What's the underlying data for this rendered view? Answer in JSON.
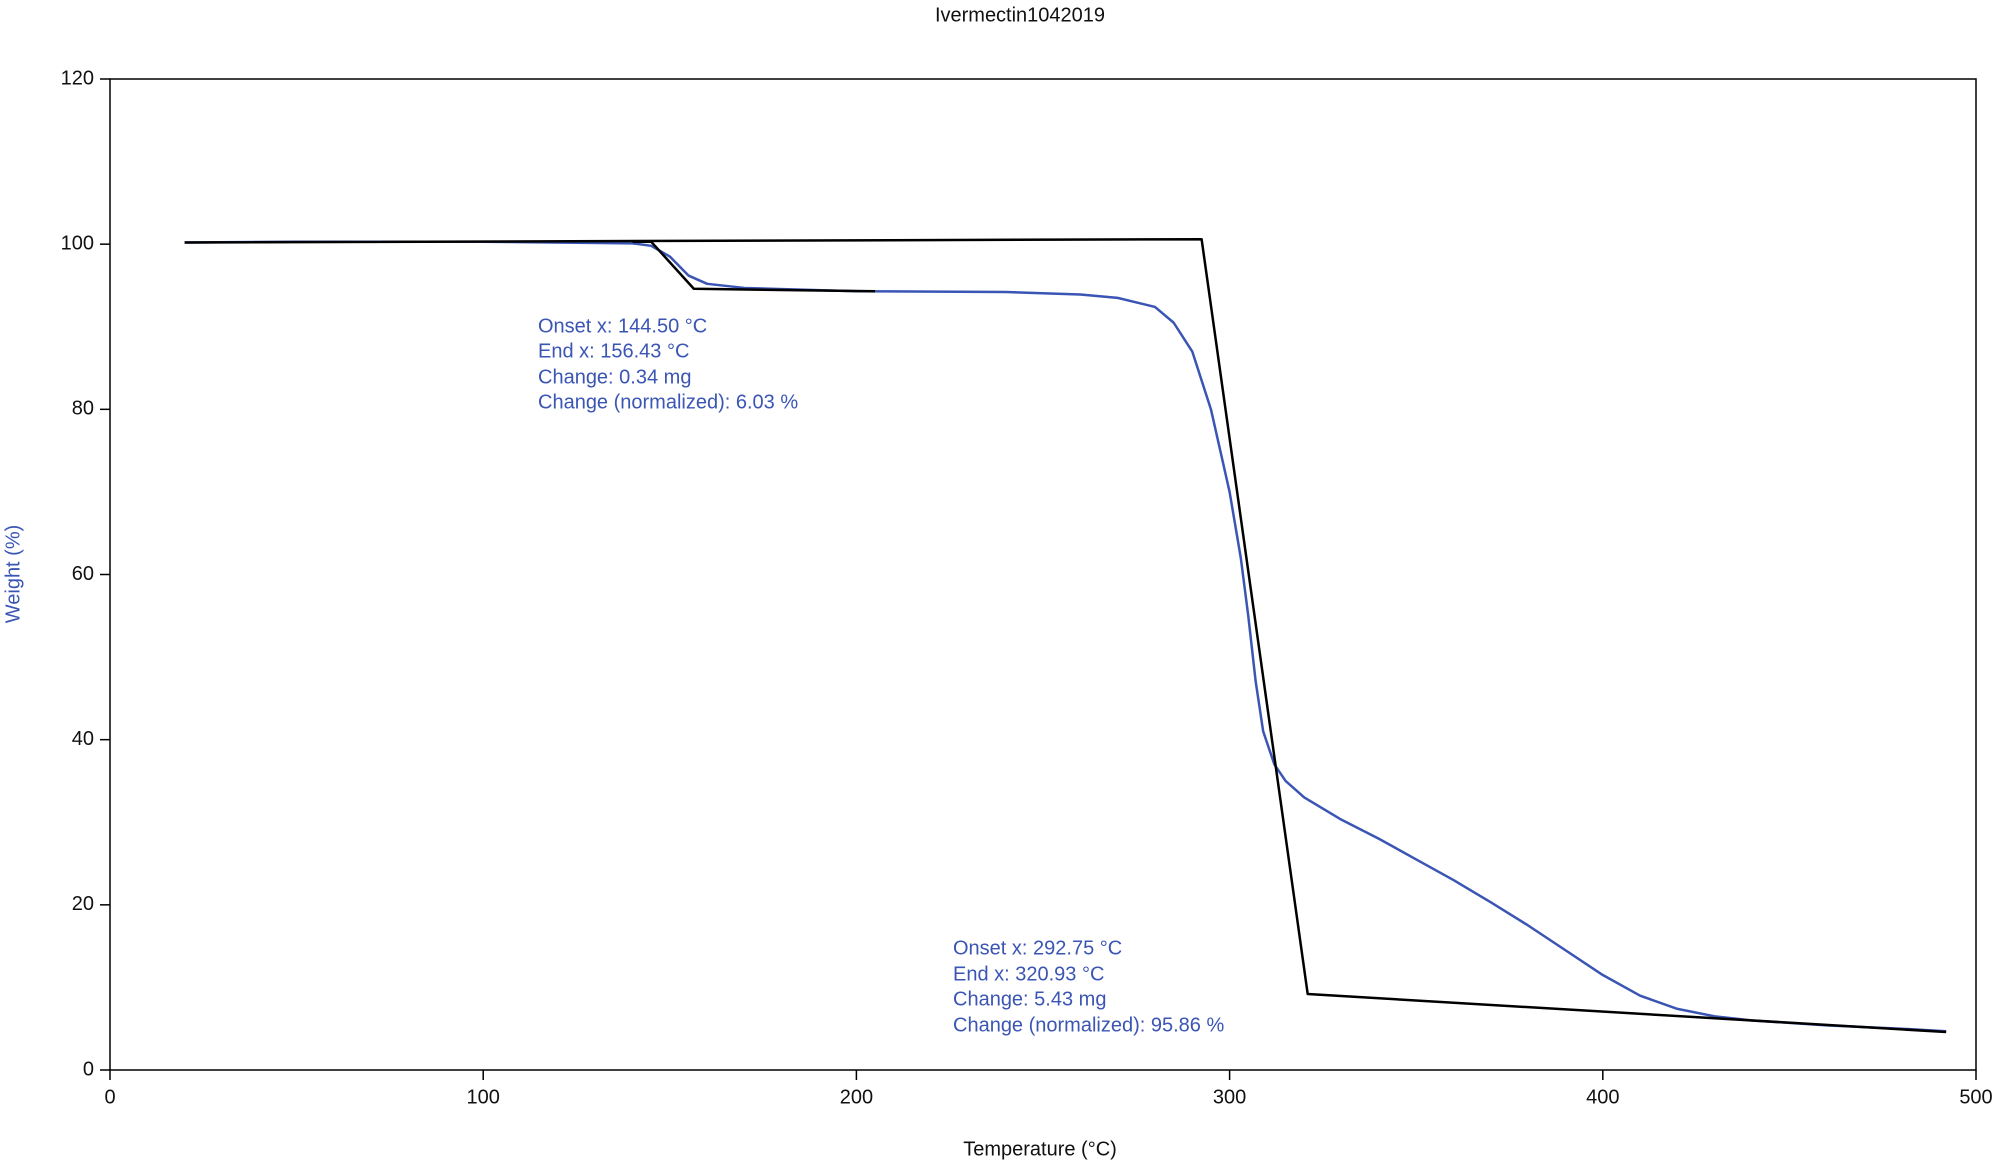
{
  "chart_data": {
    "type": "line",
    "title": "Ivermectin1042019",
    "x_label": "Temperature  (°C)",
    "y_label": "Weight  (%)",
    "xlim": [
      0,
      500
    ],
    "ylim": [
      0,
      120
    ],
    "xticks": [
      0,
      100,
      200,
      300,
      400,
      500
    ],
    "yticks": [
      0,
      20,
      40,
      60,
      80,
      100,
      120
    ],
    "series": [
      {
        "color": "#3a55b4",
        "x": [
          20,
          50,
          100,
          140,
          145,
          150,
          155,
          160,
          170,
          200,
          240,
          260,
          270,
          280,
          285,
          290,
          295,
          300,
          303,
          305,
          307,
          309,
          312,
          315,
          320,
          330,
          340,
          350,
          360,
          370,
          380,
          390,
          400,
          410,
          420,
          430,
          440,
          460,
          480,
          492
        ],
        "values": [
          100.2,
          100.3,
          100.3,
          100.1,
          99.8,
          98.5,
          96.2,
          95.2,
          94.7,
          94.3,
          94.2,
          93.9,
          93.5,
          92.4,
          90.5,
          87,
          80,
          70,
          62,
          55,
          47,
          41,
          37,
          35,
          33,
          30.3,
          28,
          25.5,
          23,
          20.3,
          17.5,
          14.5,
          11.5,
          9,
          7.4,
          6.5,
          6,
          5.4,
          5,
          4.7
        ]
      },
      {
        "color": "#000000",
        "x": [
          20,
          292.5,
          320.93,
          492
        ],
        "values": [
          100.2,
          100.6,
          9.2,
          4.6
        ]
      },
      {
        "color": "#000000",
        "x": [
          140,
          145,
          156.43,
          205
        ],
        "values": [
          100.3,
          100.3,
          94.6,
          94.3
        ]
      }
    ],
    "annotations": [
      [
        "Onset x: 144.50 °C",
        "End x: 156.43 °C",
        "Change: 0.34 mg",
        "Change (normalized): 6.03 %"
      ],
      [
        "Onset x: 292.75 °C",
        "End x: 320.93 °C",
        "Change: 5.43 mg",
        "Change (normalized): 95.86 %"
      ]
    ]
  }
}
